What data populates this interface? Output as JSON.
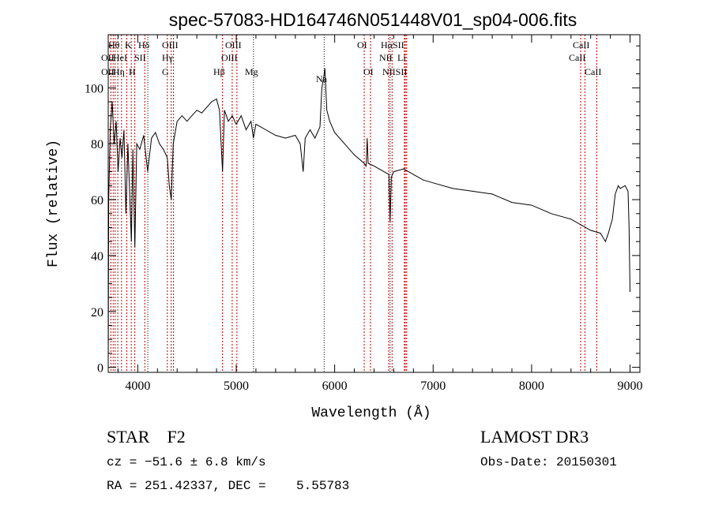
{
  "chart_data": {
    "type": "line",
    "title": "spec-57083-HD164746N051448V01_sp04-006.fits",
    "xlabel": "Wavelength (Å)",
    "ylabel": "Flux (relative)",
    "xlim": [
      3700,
      9100
    ],
    "ylim": [
      -1.8,
      119
    ],
    "xticks": [
      4000,
      5000,
      6000,
      7000,
      8000,
      9000
    ],
    "yticks": [
      0,
      20,
      40,
      60,
      80,
      100
    ],
    "series": [
      {
        "name": "spectrum",
        "color": "#000000",
        "x": [
          3700,
          3705,
          3720,
          3740,
          3760,
          3780,
          3800,
          3820,
          3840,
          3860,
          3880,
          3900,
          3920,
          3935,
          3950,
          3970,
          3990,
          4020,
          4060,
          4100,
          4140,
          4180,
          4220,
          4260,
          4300,
          4320,
          4340,
          4360,
          4400,
          4450,
          4500,
          4550,
          4600,
          4650,
          4700,
          4750,
          4800,
          4830,
          4861,
          4880,
          4920,
          4960,
          5000,
          5050,
          5100,
          5150,
          5175,
          5200,
          5300,
          5400,
          5500,
          5600,
          5650,
          5680,
          5700,
          5750,
          5800,
          5850,
          5870,
          5890,
          5900,
          5920,
          5950,
          6000,
          6100,
          6200,
          6300,
          6320,
          6330,
          6340,
          6400,
          6500,
          6550,
          6563,
          6575,
          6600,
          6700,
          6800,
          6900,
          7000,
          7200,
          7400,
          7600,
          7800,
          8000,
          8200,
          8400,
          8600,
          8700,
          8750,
          8780,
          8820,
          8850,
          8880,
          8900,
          8950,
          8980,
          8990,
          9000
        ],
        "y": [
          0,
          60,
          85,
          95,
          80,
          88,
          70,
          82,
          75,
          85,
          55,
          80,
          60,
          45,
          78,
          43,
          80,
          78,
          83,
          70,
          82,
          84,
          80,
          78,
          75,
          65,
          60,
          80,
          88,
          90,
          88,
          90,
          92,
          91,
          93,
          95,
          96,
          92,
          70,
          92,
          88,
          90,
          87,
          90,
          85,
          88,
          82,
          87,
          85,
          83,
          82,
          83,
          80,
          70,
          82,
          85,
          82,
          86,
          100,
          104,
          107,
          92,
          88,
          84,
          80,
          76,
          73,
          72,
          82,
          73,
          72,
          70,
          69,
          52,
          68,
          70,
          71,
          69,
          67,
          66,
          64,
          63,
          62,
          59,
          58,
          55,
          53,
          49,
          48,
          45,
          48,
          53,
          62,
          65,
          64,
          65,
          63,
          50,
          27
        ]
      }
    ],
    "lines": {
      "red": [
        3727,
        3750,
        3770,
        3797,
        3835,
        3889,
        3934,
        3970,
        4072,
        4300,
        4340,
        4363,
        4861,
        4959,
        5007,
        6300,
        6364,
        6548,
        6583,
        6708,
        6717,
        6731,
        8498,
        8542,
        8662
      ],
      "black": [
        4102,
        5175,
        5893,
        6563
      ]
    },
    "line_labels": [
      "Hθ",
      "K",
      "Hδ",
      "OIII",
      "OIII",
      "OI",
      "HαSII",
      "CaII",
      "OII",
      "HeI",
      "SII",
      "Hγ",
      "OIII",
      "NII",
      "Li",
      "CaII",
      "OII",
      "Hη",
      "H",
      "G",
      "Hβ",
      "Mg",
      "Na",
      "OI",
      "NIISII",
      "CaII"
    ]
  },
  "footer": {
    "object": "STAR    F2",
    "survey": "LAMOST DR3",
    "cz": "cz = −51.6 ± 6.8 km/s",
    "obs_date": "Obs-Date: 20150301",
    "coords": "RA = 251.42337, DEC =    5.55783"
  }
}
